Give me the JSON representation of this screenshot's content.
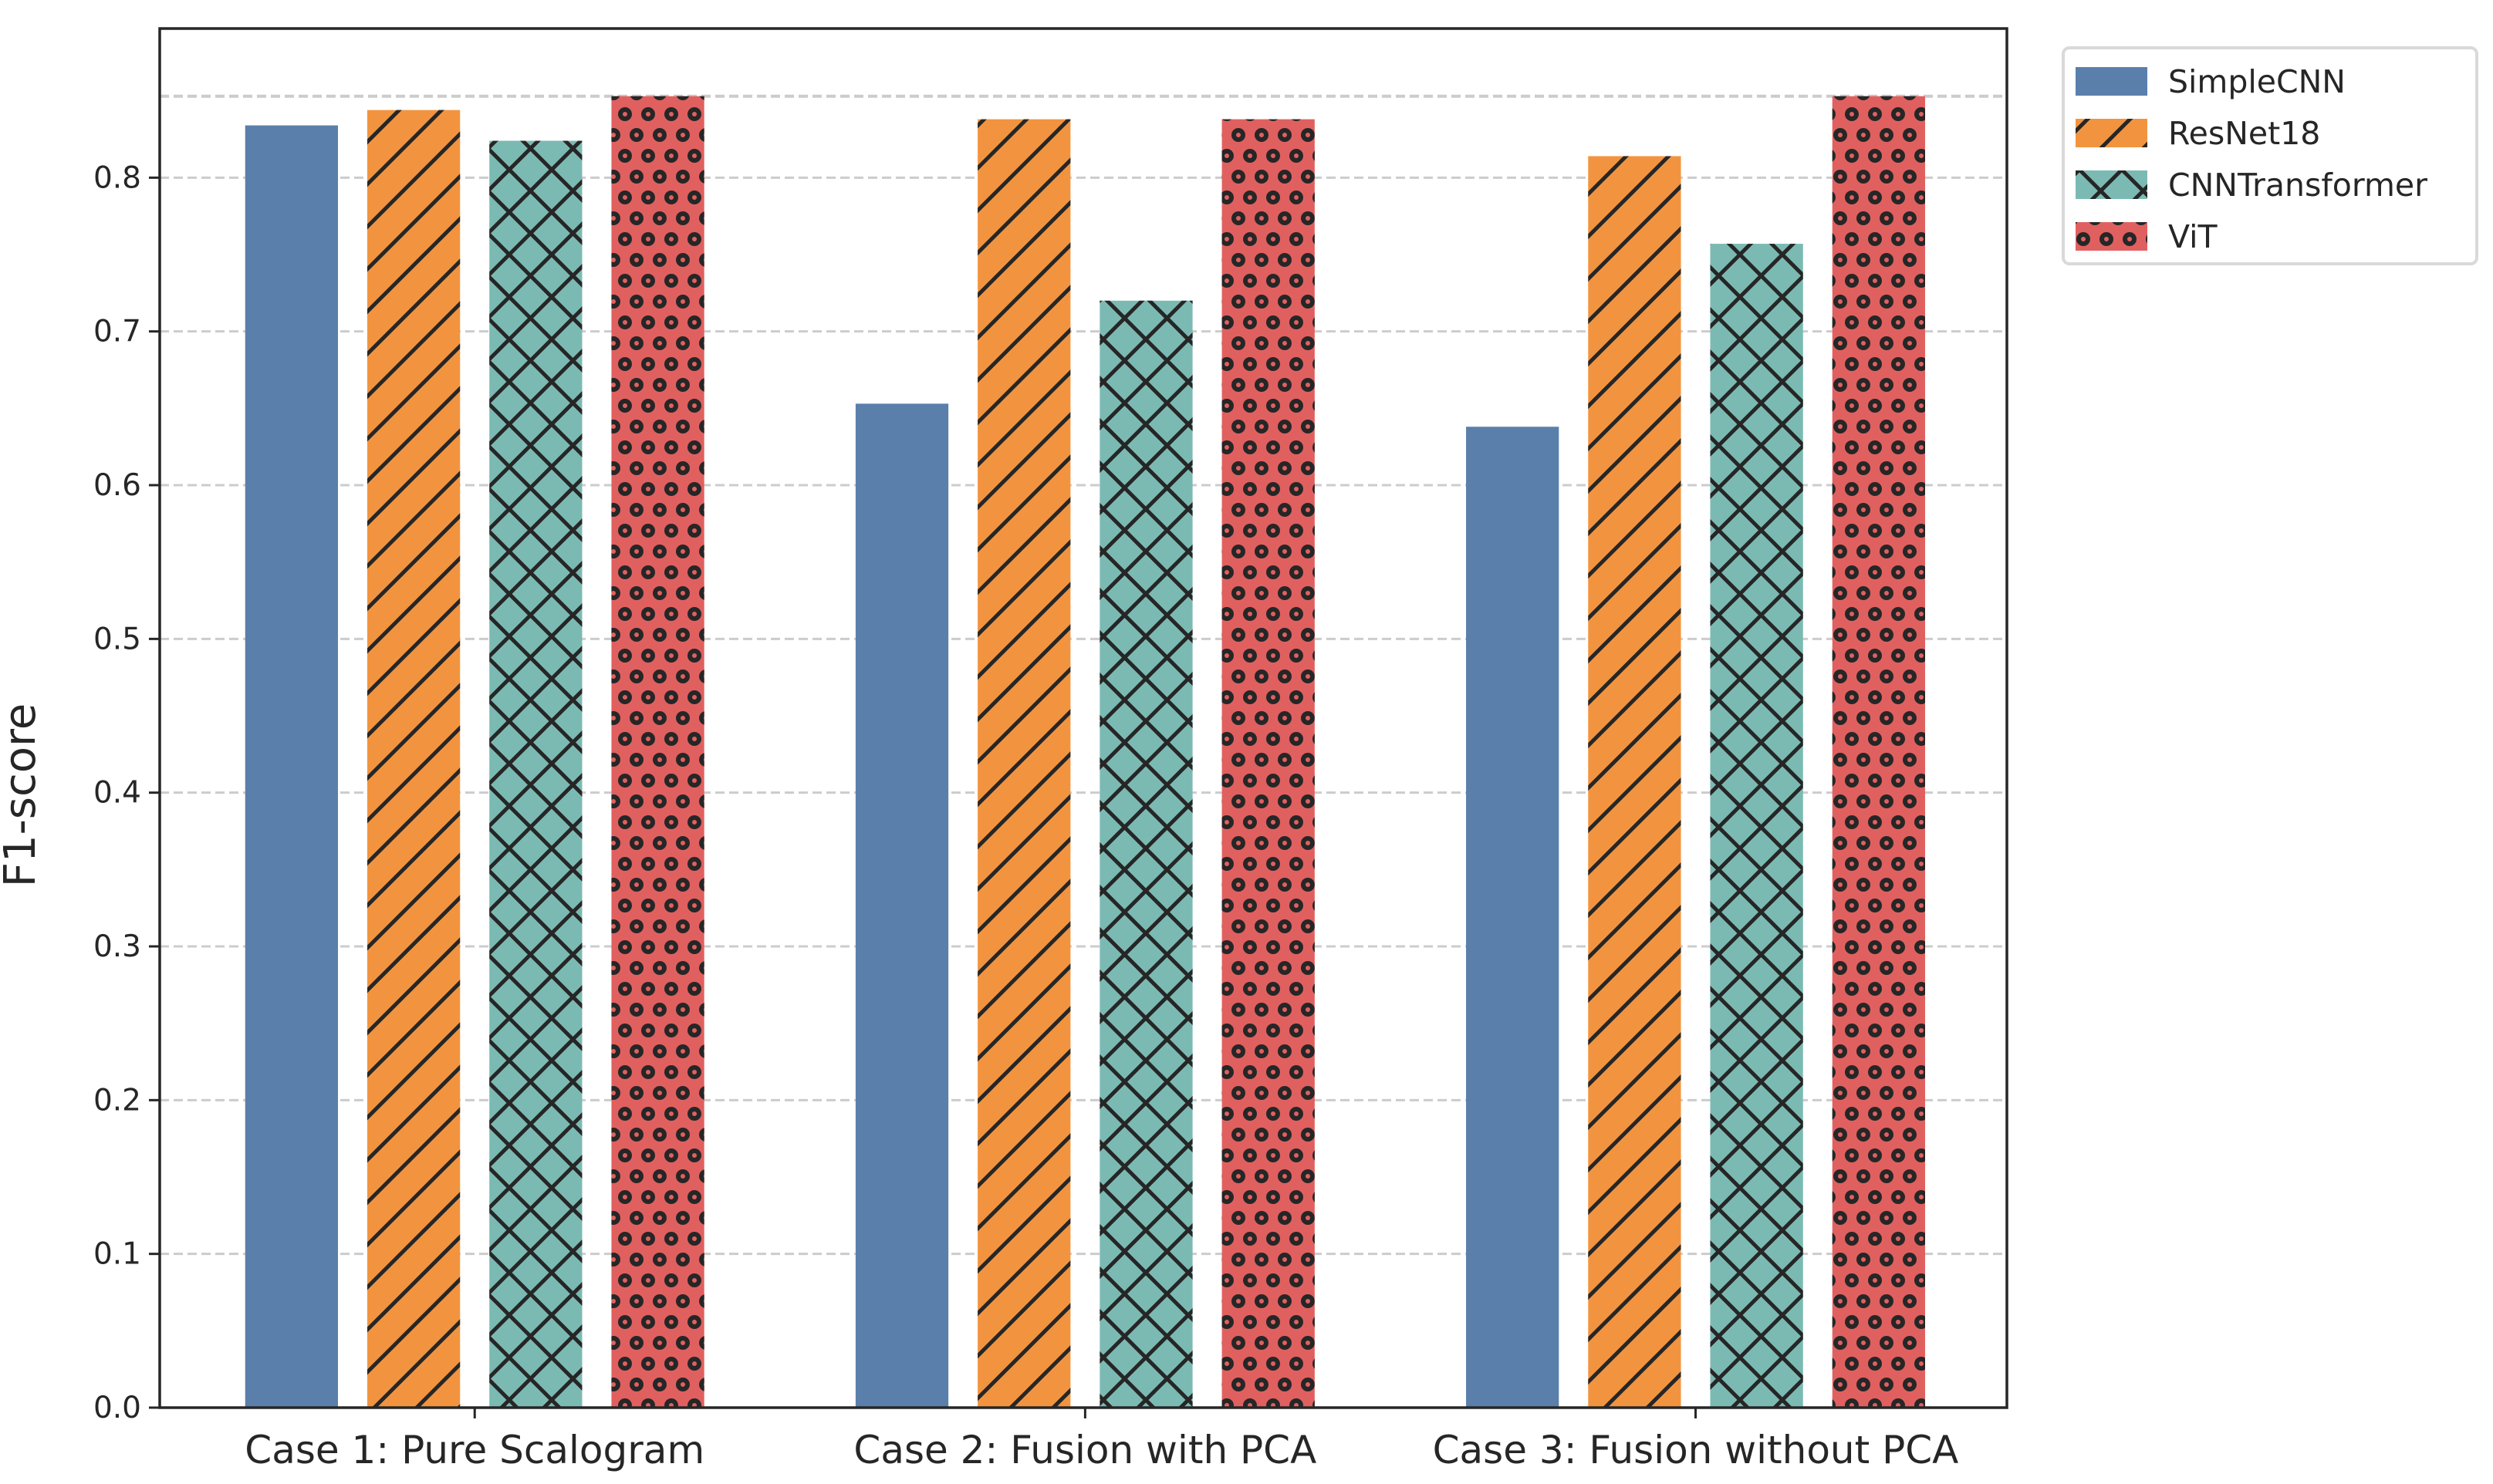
{
  "chart_data": {
    "type": "bar",
    "title": "",
    "xlabel": "",
    "ylabel": "F1-score",
    "categories": [
      "Case 1: Pure Scalogram",
      "Case 2: Fusion with PCA",
      "Case 3: Fusion without PCA"
    ],
    "series": [
      {
        "name": "SimpleCNN",
        "values": [
          0.834,
          0.653,
          0.638
        ],
        "color": "#5a7fab",
        "hatch": "none"
      },
      {
        "name": "ResNet18",
        "values": [
          0.844,
          0.838,
          0.814
        ],
        "color": "#f2943f",
        "hatch": "/"
      },
      {
        "name": "CNNTransformer",
        "values": [
          0.824,
          0.72,
          0.757
        ],
        "color": "#7bbab3",
        "hatch": "x"
      },
      {
        "name": "ViT",
        "values": [
          0.853,
          0.838,
          0.853
        ],
        "color": "#e06060",
        "hatch": "o"
      }
    ],
    "ylim": [
      0,
      0.897
    ],
    "yticks": [
      "0.0",
      "0.1",
      "0.2",
      "0.3",
      "0.4",
      "0.5",
      "0.6",
      "0.7",
      "0.8"
    ],
    "grid": "y-dashed",
    "reference_line": 0.853,
    "legend_position": "outside-top-right"
  }
}
